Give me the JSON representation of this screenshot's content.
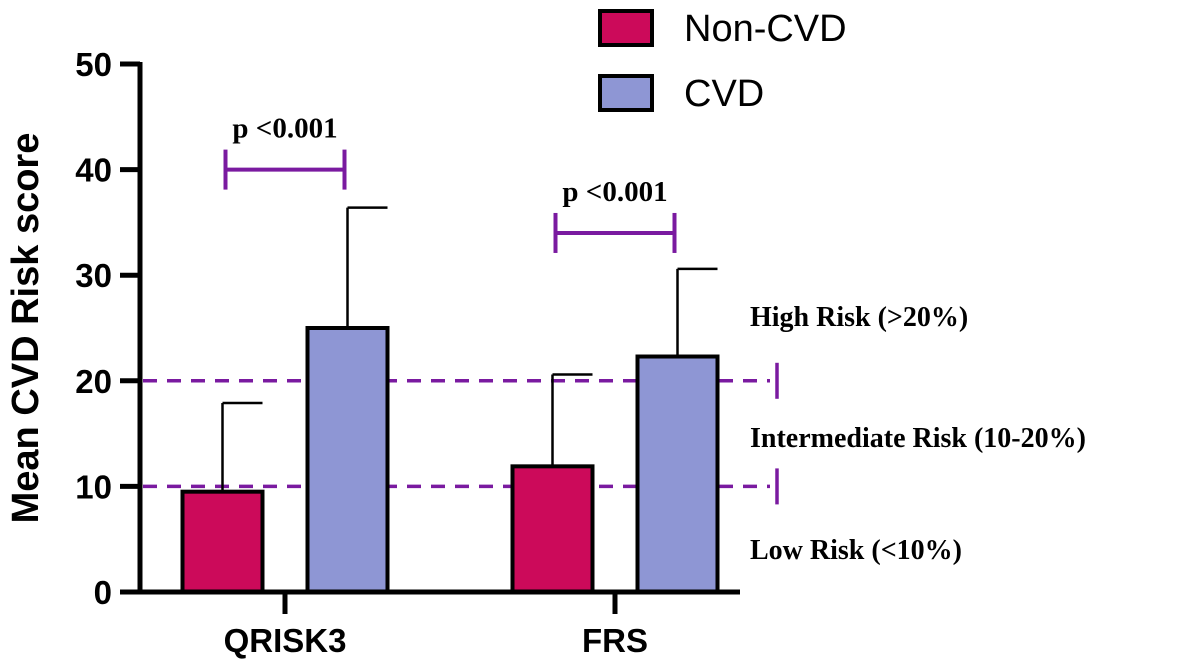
{
  "chart_data": {
    "type": "bar",
    "title": "",
    "xlabel": "",
    "ylabel": "Mean CVD Risk score",
    "ylim": [
      0,
      50
    ],
    "yticks": [
      0,
      10,
      20,
      30,
      40,
      50
    ],
    "grid": false,
    "categories": [
      "QRISK3",
      "FRS"
    ],
    "series": [
      {
        "name": "Non-CVD",
        "color": "#cc0a5a",
        "values": [
          9.5,
          11.9
        ],
        "error_upper": [
          17.9,
          20.6
        ]
      },
      {
        "name": "CVD",
        "color": "#8e96d4",
        "values": [
          25.0,
          22.3
        ],
        "error_upper": [
          36.4,
          30.6
        ]
      }
    ],
    "legend_position": "top-center",
    "significance": [
      {
        "category": "QRISK3",
        "label": "p <0.001",
        "y": 40
      },
      {
        "category": "FRS",
        "label": "p <0.001",
        "y": 34
      }
    ],
    "reference_lines": [
      {
        "y": 20
      },
      {
        "y": 10
      }
    ],
    "annotation_color": "#7a1aa0",
    "risk_zones": [
      {
        "label": "High Risk (>20%)"
      },
      {
        "label": "Intermediate Risk (10-20%)"
      },
      {
        "label": "Low Risk (<10%)"
      }
    ]
  }
}
